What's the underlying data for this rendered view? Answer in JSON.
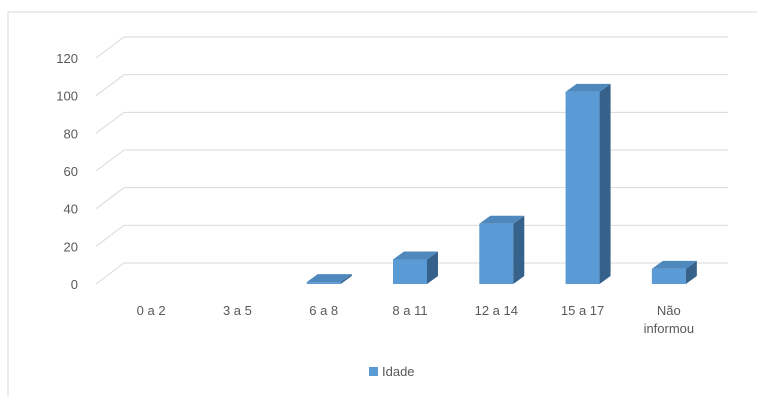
{
  "chart_data": {
    "type": "bar",
    "categories": [
      "0 a 2",
      "3 a 5",
      "6 a 8",
      "8 a 11",
      "12 a 14",
      "15 a 17",
      "Não informou"
    ],
    "series": [
      {
        "name": "Idade",
        "values": [
          0,
          0,
          1,
          13,
          32,
          102,
          8
        ]
      }
    ],
    "ylim": [
      0,
      120
    ],
    "yticks": [
      0,
      20,
      40,
      60,
      80,
      100,
      120
    ],
    "grid": true,
    "legend": "bottom",
    "three_d": true,
    "colors": {
      "front": "#5b9bd5",
      "top": "#4f88bc",
      "side": "#35618a",
      "grid": "#d9d9d9",
      "text": "#595959"
    }
  }
}
